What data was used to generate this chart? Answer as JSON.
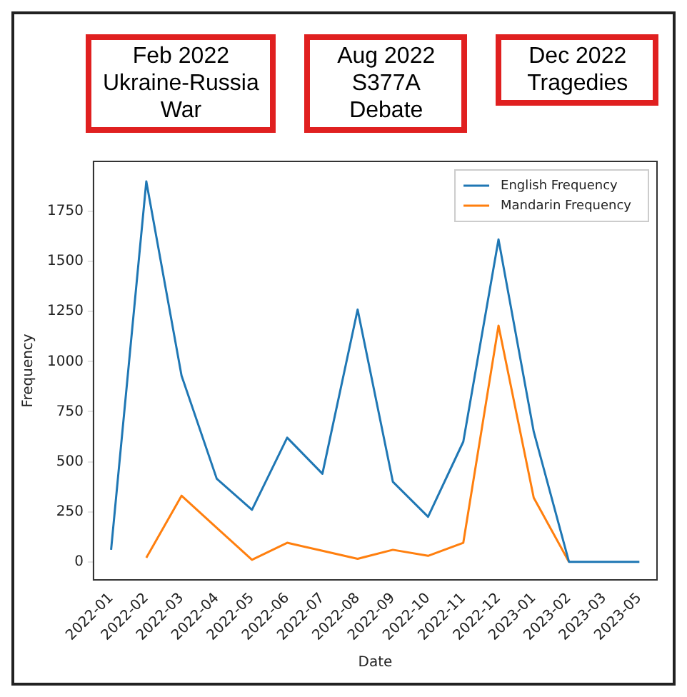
{
  "chart_data": {
    "type": "line",
    "annotations": [
      "Feb 2022\nUkraine-Russia\nWar",
      "Aug 2022\nS377A\nDebate",
      "Dec 2022\nTragedies"
    ],
    "xlabel": "Date",
    "ylabel": "Frequency",
    "categories": [
      "2022-01",
      "2022-02",
      "2022-03",
      "2022-04",
      "2022-05",
      "2022-06",
      "2022-07",
      "2022-08",
      "2022-09",
      "2022-10",
      "2022-11",
      "2022-12",
      "2023-01",
      "2023-02",
      "2023-03",
      "2023-05"
    ],
    "series": [
      {
        "name": "English Frequency",
        "color": "#1f77b4",
        "values": [
          60,
          1900,
          930,
          415,
          260,
          620,
          440,
          1260,
          400,
          225,
          600,
          1610,
          650,
          0,
          0,
          0
        ]
      },
      {
        "name": "Mandarin Frequency",
        "color": "#ff7f0e",
        "values": [
          null,
          20,
          330,
          170,
          10,
          95,
          55,
          15,
          60,
          30,
          95,
          1180,
          320,
          0,
          null,
          null
        ]
      }
    ],
    "ylim": [
      -90,
      2000
    ],
    "yticks": [
      0,
      250,
      500,
      750,
      1000,
      1250,
      1500,
      1750
    ],
    "grid": false,
    "legend": "top right",
    "marker": "none",
    "line_style": "solid"
  }
}
